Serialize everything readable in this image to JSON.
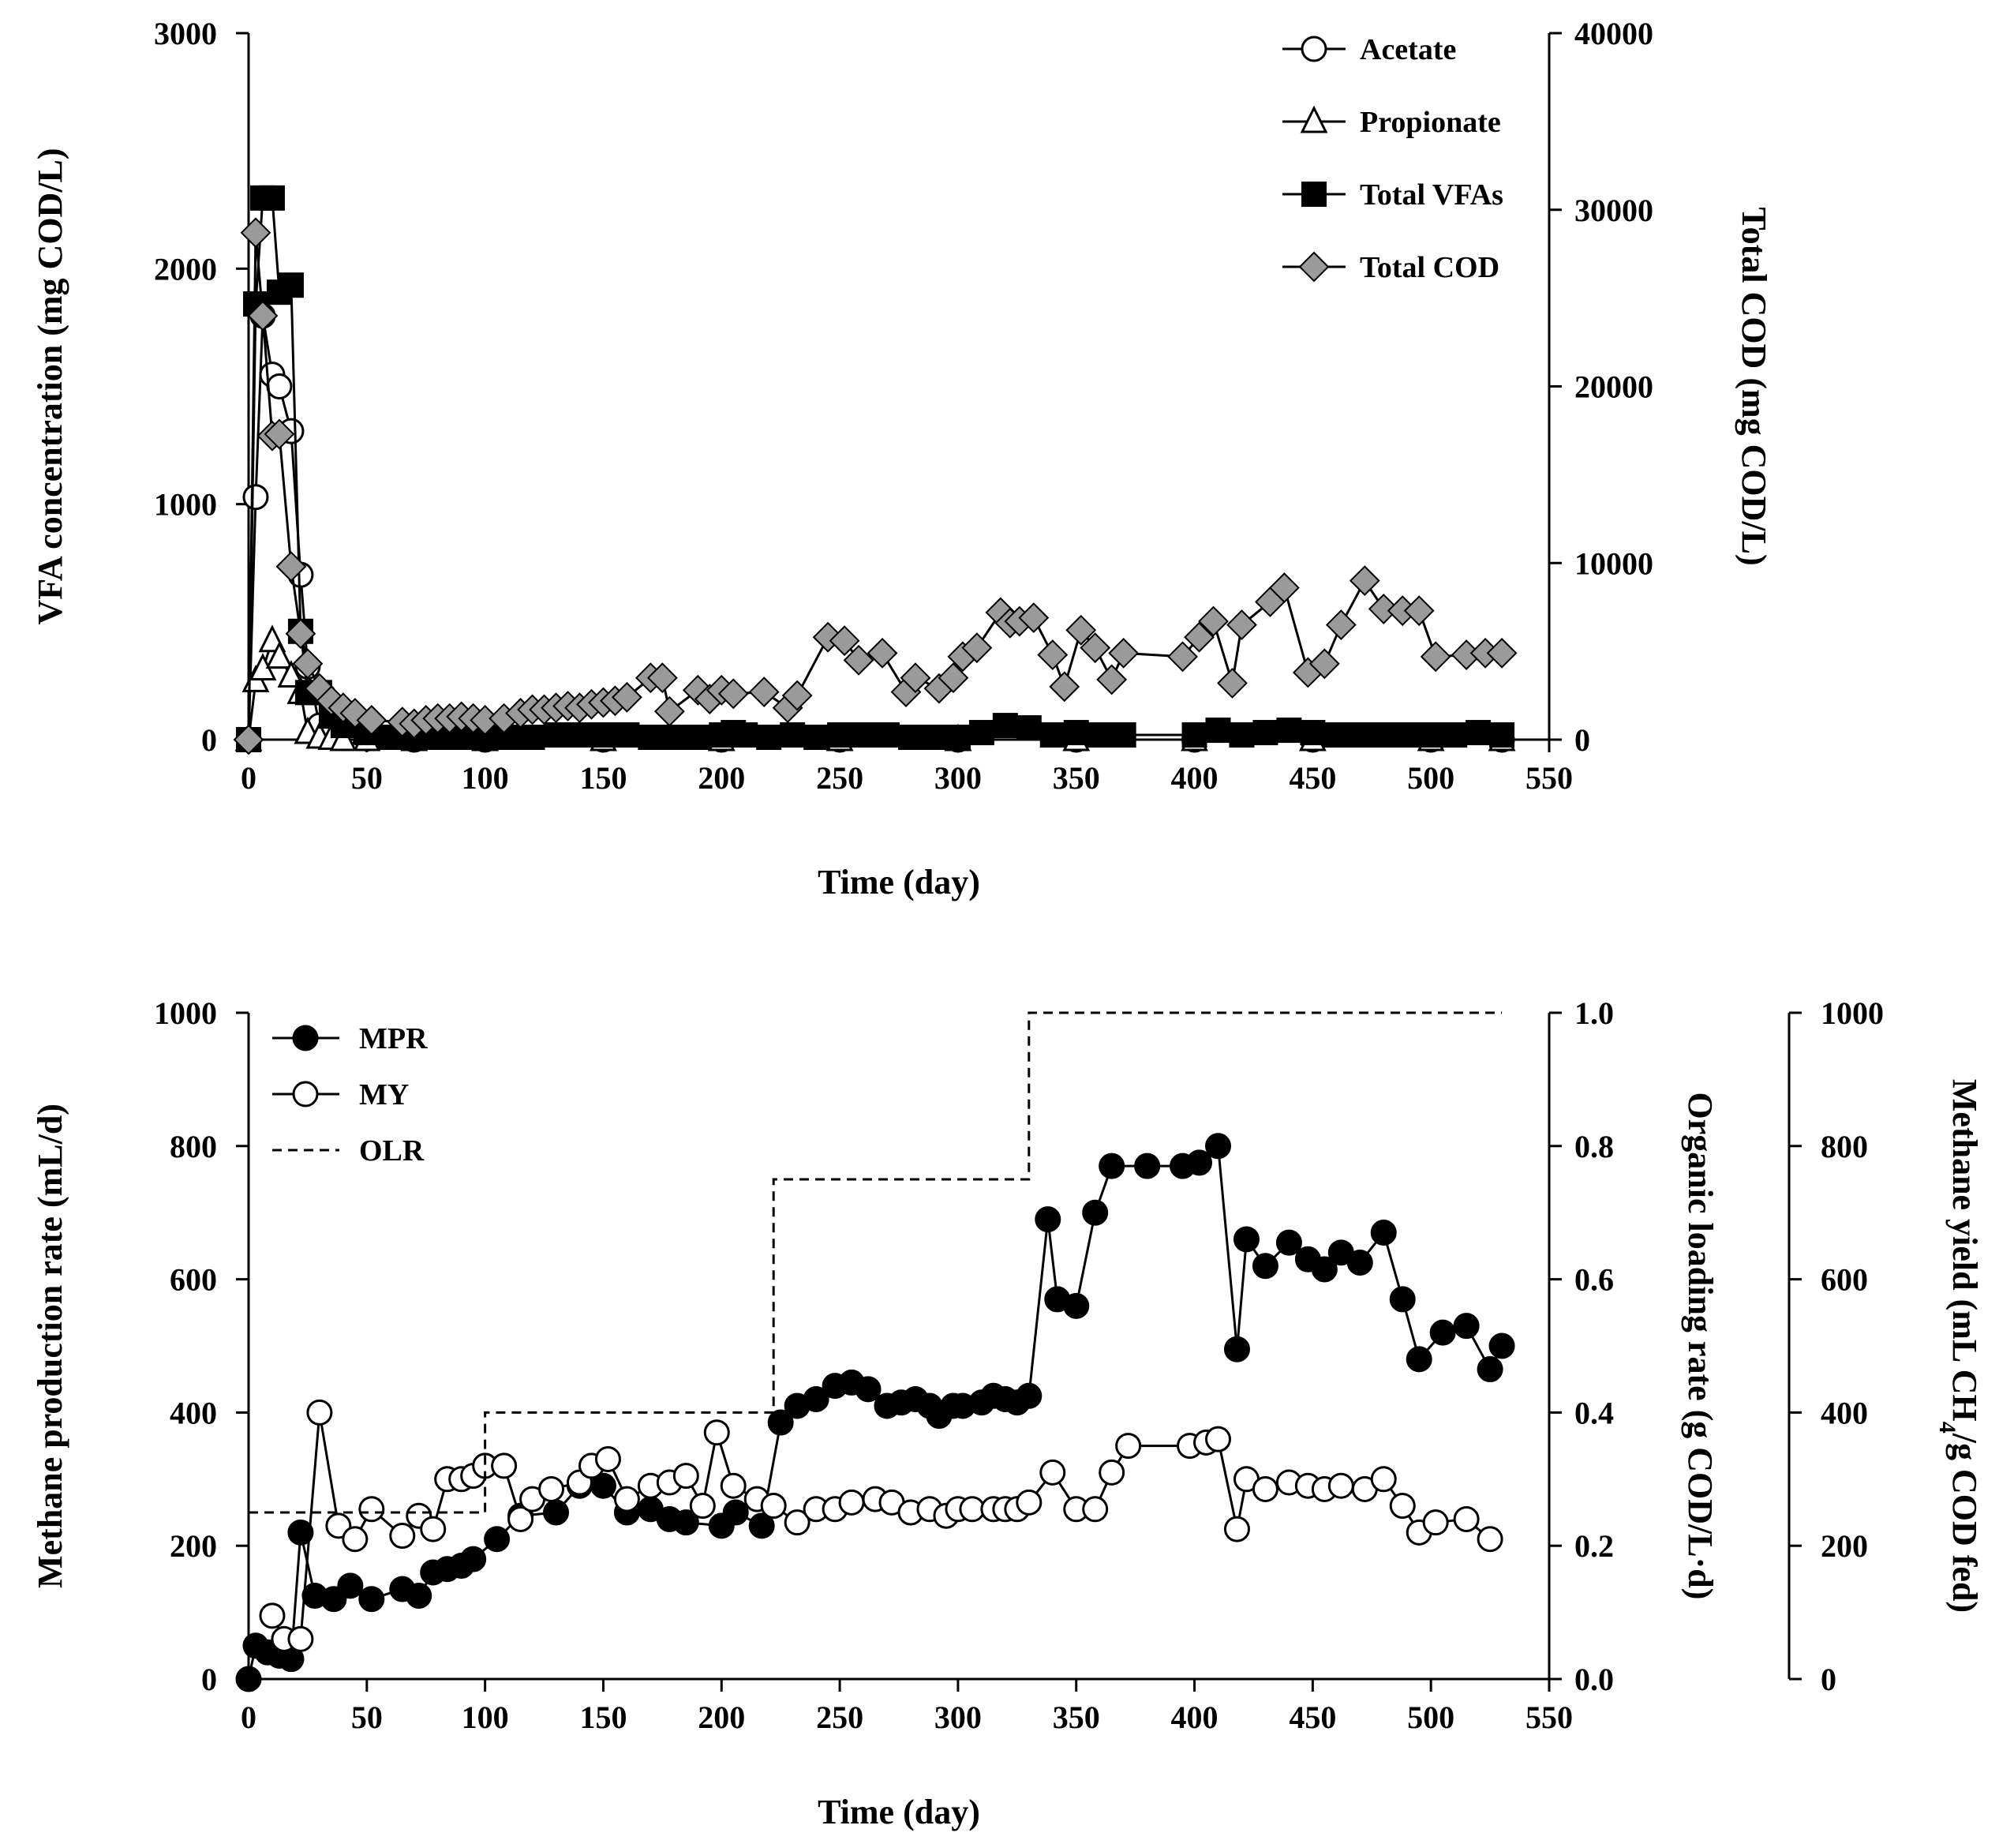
{
  "chart_data": [
    {
      "type": "line",
      "x_axis": {
        "label": "Time (day)",
        "range": [
          0,
          550
        ],
        "ticks": [
          0,
          50,
          100,
          150,
          200,
          250,
          300,
          350,
          400,
          450,
          500,
          550
        ]
      },
      "y_left": {
        "label": "VFA concentration (mg COD/L)",
        "range": [
          0,
          3000
        ],
        "ticks": [
          0,
          1000,
          2000,
          3000
        ]
      },
      "y_right": {
        "label": "Total COD (mg COD/L)",
        "range": [
          0,
          40000
        ],
        "ticks": [
          0,
          10000,
          20000,
          30000,
          40000
        ]
      },
      "legend_position": "top-right",
      "series": [
        {
          "name": "Acetate",
          "marker": "circle-open",
          "axis": "left",
          "x": [
            0,
            3,
            6,
            10,
            13,
            18,
            22,
            25,
            30,
            35,
            40,
            50,
            70,
            100,
            150,
            200,
            250,
            300,
            350,
            400,
            450,
            500,
            530
          ],
          "y": [
            0,
            1030,
            1800,
            1550,
            1500,
            1310,
            700,
            310,
            60,
            30,
            10,
            5,
            0,
            0,
            0,
            0,
            0,
            0,
            0,
            0,
            0,
            0,
            0
          ]
        },
        {
          "name": "Propionate",
          "marker": "triangle-open",
          "axis": "left",
          "x": [
            0,
            3,
            6,
            10,
            13,
            18,
            22,
            25,
            30,
            35,
            40,
            50,
            70,
            100,
            150,
            200,
            250,
            300,
            350,
            400,
            450,
            500,
            530
          ],
          "y": [
            0,
            250,
            300,
            420,
            350,
            270,
            200,
            30,
            10,
            5,
            0,
            0,
            0,
            0,
            0,
            0,
            0,
            0,
            0,
            0,
            0,
            0,
            0
          ]
        },
        {
          "name": "Total VFAs",
          "marker": "square-filled",
          "axis": "left",
          "x": [
            0,
            3,
            6,
            10,
            13,
            18,
            22,
            25,
            30,
            35,
            40,
            50,
            60,
            70,
            80,
            90,
            100,
            110,
            120,
            130,
            140,
            150,
            160,
            170,
            180,
            190,
            200,
            205,
            210,
            220,
            230,
            240,
            250,
            260,
            270,
            280,
            290,
            300,
            310,
            320,
            330,
            340,
            350,
            360,
            370,
            400,
            410,
            420,
            430,
            440,
            450,
            460,
            470,
            480,
            490,
            500,
            510,
            520,
            530
          ],
          "y": [
            0,
            1850,
            2300,
            2300,
            1900,
            1930,
            460,
            200,
            200,
            100,
            60,
            30,
            10,
            10,
            10,
            10,
            10,
            10,
            10,
            20,
            20,
            20,
            20,
            10,
            10,
            10,
            20,
            30,
            20,
            10,
            20,
            10,
            20,
            20,
            20,
            10,
            10,
            10,
            30,
            60,
            50,
            20,
            30,
            20,
            20,
            20,
            40,
            20,
            30,
            40,
            30,
            20,
            20,
            20,
            20,
            20,
            20,
            30,
            20
          ]
        },
        {
          "name": "Total COD",
          "marker": "diamond-filled",
          "axis": "right",
          "x": [
            0,
            3,
            6,
            10,
            13,
            18,
            22,
            25,
            30,
            35,
            40,
            45,
            52,
            65,
            70,
            75,
            80,
            85,
            90,
            95,
            100,
            108,
            115,
            120,
            125,
            130,
            135,
            140,
            145,
            150,
            155,
            160,
            170,
            175,
            178,
            190,
            195,
            200,
            205,
            218,
            228,
            232,
            245,
            252,
            258,
            268,
            278,
            282,
            292,
            298,
            302,
            308,
            318,
            322,
            326,
            332,
            340,
            345,
            352,
            358,
            365,
            370,
            395,
            402,
            408,
            416,
            420,
            432,
            438,
            448,
            455,
            462,
            472,
            480,
            488,
            495,
            502,
            515,
            523,
            530
          ],
          "y": [
            0,
            28700,
            24000,
            17200,
            17300,
            9800,
            6000,
            4300,
            2900,
            2200,
            1800,
            1500,
            1100,
            1000,
            900,
            1100,
            1200,
            1200,
            1300,
            1200,
            1100,
            1200,
            1500,
            1700,
            1700,
            1800,
            1900,
            1800,
            2000,
            2100,
            2200,
            2400,
            3500,
            3500,
            1600,
            2800,
            2300,
            2800,
            2600,
            2700,
            1800,
            2500,
            5800,
            5600,
            4500,
            4900,
            2700,
            3500,
            2900,
            3500,
            4700,
            5200,
            7200,
            6600,
            6700,
            6900,
            4800,
            3000,
            6200,
            5200,
            3400,
            4900,
            4700,
            5800,
            6700,
            3200,
            6500,
            7800,
            8600,
            3800,
            4300,
            6500,
            9000,
            7400,
            7300,
            7300,
            4700,
            4800,
            4900,
            4900
          ]
        }
      ]
    },
    {
      "type": "line",
      "x_axis": {
        "label": "Time (day)",
        "range": [
          0,
          550
        ],
        "ticks": [
          0,
          50,
          100,
          150,
          200,
          250,
          300,
          350,
          400,
          450,
          500,
          550
        ]
      },
      "y_left": {
        "label": "Methane production rate (mL/d)",
        "range": [
          0,
          1000
        ],
        "ticks": [
          0,
          200,
          400,
          600,
          800,
          1000
        ]
      },
      "y_right": {
        "label": "Organic loading rate (g COD/L·d)",
        "range": [
          0,
          1.0
        ],
        "ticks": [
          "0.0",
          "0.2",
          "0.4",
          "0.6",
          "0.8",
          "1.0"
        ]
      },
      "y_right2": {
        "label_main": "Methane yield (mL CH",
        "label_sub": "4",
        "label_end": "/g COD fed)",
        "range": [
          0,
          1000
        ],
        "ticks": [
          0,
          200,
          400,
          600,
          800,
          1000
        ]
      },
      "legend_position": "top-left",
      "series": [
        {
          "name": "MPR",
          "marker": "circle-filled",
          "axis": "left",
          "x": [
            0,
            3,
            8,
            13,
            18,
            22,
            28,
            36,
            43,
            52,
            65,
            72,
            78,
            84,
            90,
            95,
            105,
            115,
            130,
            140,
            150,
            160,
            170,
            178,
            185,
            200,
            206,
            217,
            225,
            232,
            240,
            248,
            255,
            262,
            270,
            276,
            282,
            288,
            292,
            298,
            302,
            310,
            315,
            320,
            325,
            330,
            338,
            342,
            350,
            358,
            365,
            380,
            395,
            402,
            410,
            418,
            422,
            430,
            440,
            448,
            455,
            462,
            470,
            480,
            488,
            495,
            505,
            515,
            525,
            530
          ],
          "y": [
            0,
            50,
            40,
            35,
            30,
            220,
            125,
            120,
            140,
            120,
            135,
            125,
            160,
            165,
            170,
            180,
            210,
            245,
            250,
            290,
            290,
            250,
            255,
            240,
            235,
            230,
            250,
            230,
            385,
            410,
            420,
            440,
            445,
            435,
            410,
            415,
            420,
            410,
            395,
            410,
            410,
            415,
            425,
            420,
            415,
            425,
            690,
            570,
            560,
            700,
            770,
            770,
            770,
            775,
            800,
            495,
            660,
            620,
            655,
            630,
            615,
            640,
            625,
            670,
            570,
            480,
            520,
            530,
            465,
            500
          ]
        },
        {
          "name": "MY",
          "marker": "circle-open",
          "axis": "right2",
          "x": [
            10,
            15,
            22,
            30,
            38,
            45,
            52,
            65,
            72,
            78,
            84,
            90,
            95,
            100,
            108,
            115,
            120,
            128,
            140,
            145,
            152,
            160,
            170,
            178,
            185,
            192,
            198,
            205,
            215,
            222,
            232,
            240,
            248,
            255,
            265,
            272,
            280,
            288,
            295,
            300,
            306,
            315,
            320,
            325,
            330,
            340,
            350,
            358,
            365,
            372,
            398,
            405,
            410,
            418,
            422,
            430,
            440,
            448,
            455,
            462,
            472,
            480,
            488,
            495,
            502,
            515,
            525
          ],
          "y": [
            95,
            60,
            60,
            400,
            230,
            210,
            255,
            215,
            245,
            225,
            300,
            300,
            305,
            320,
            320,
            240,
            270,
            285,
            295,
            320,
            330,
            270,
            290,
            295,
            305,
            260,
            370,
            290,
            270,
            260,
            235,
            255,
            255,
            265,
            270,
            265,
            250,
            255,
            245,
            255,
            255,
            255,
            255,
            255,
            265,
            310,
            255,
            255,
            310,
            350,
            350,
            355,
            360,
            225,
            300,
            285,
            295,
            290,
            285,
            290,
            285,
            300,
            260,
            220,
            235,
            240,
            210
          ]
        },
        {
          "name": "OLR",
          "style": "dashed",
          "axis": "right",
          "x": [
            0,
            100,
            100,
            222,
            222,
            330,
            330,
            530
          ],
          "y": [
            0.25,
            0.25,
            0.4,
            0.4,
            0.75,
            0.75,
            1.0,
            1.0
          ]
        }
      ]
    }
  ]
}
